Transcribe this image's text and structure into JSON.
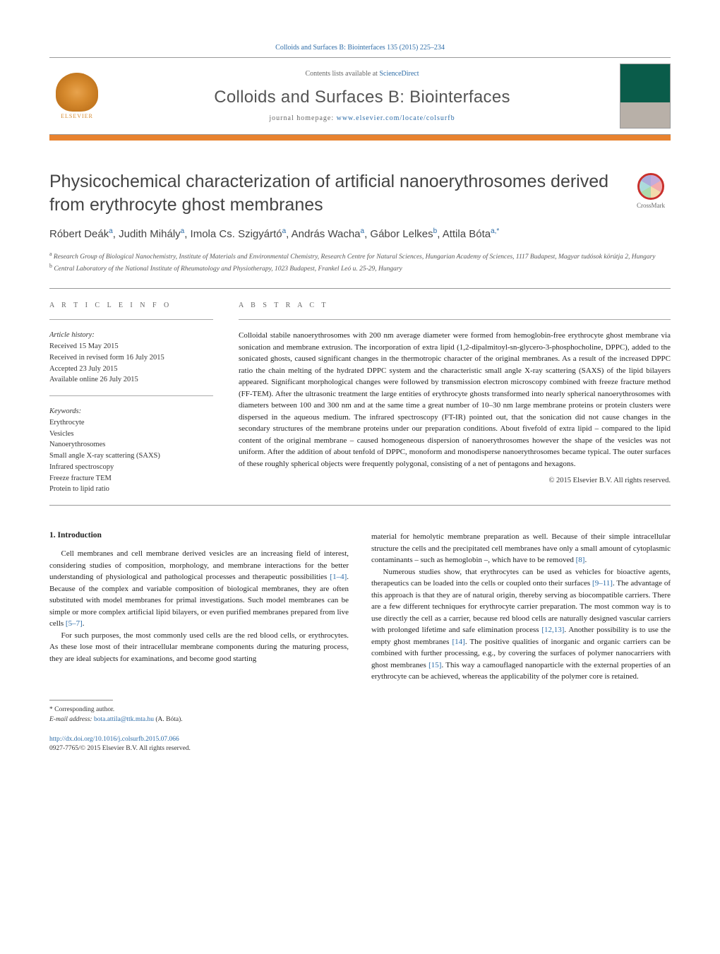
{
  "header": {
    "top_link": "Colloids and Surfaces B: Biointerfaces 135 (2015) 225–234",
    "contents_prefix": "Contents lists available at ",
    "contents_link": "ScienceDirect",
    "journal_name": "Colloids and Surfaces B: Biointerfaces",
    "homepage_prefix": "journal homepage: ",
    "homepage_link": "www.elsevier.com/locate/colsurfb",
    "elsevier_label": "ELSEVIER",
    "crossmark_label": "CrossMark"
  },
  "title": "Physicochemical characterization of artificial nanoerythrosomes derived from erythrocyte ghost membranes",
  "authors_html": "Róbert Deák<sup>a</sup>, Judith Mihály<sup>a</sup>, Imola Cs. Szigyártó<sup>a</sup>, András Wacha<sup>a</sup>, Gábor Lelkes<sup>b</sup>, Attila Bóta<sup>a,*</sup>",
  "affiliations": {
    "a": "Research Group of Biological Nanochemistry, Institute of Materials and Environmental Chemistry, Research Centre for Natural Sciences, Hungarian Academy of Sciences, 1117 Budapest, Magyar tudósok körútja 2, Hungary",
    "b": "Central Laboratory of the National Institute of Rheumatology and Physiotherapy, 1023 Budapest, Frankel Leó u. 25-29, Hungary"
  },
  "article_info": {
    "label": "A R T I C L E   I N F O",
    "history_hdr": "Article history:",
    "received": "Received 15 May 2015",
    "revised": "Received in revised form 16 July 2015",
    "accepted": "Accepted 23 July 2015",
    "online": "Available online 26 July 2015",
    "keywords_hdr": "Keywords:",
    "keywords": [
      "Erythrocyte",
      "Vesicles",
      "Nanoerythrosomes",
      "Small angle X-ray scattering (SAXS)",
      "Infrared spectroscopy",
      "Freeze fracture TEM",
      "Protein to lipid ratio"
    ]
  },
  "abstract": {
    "label": "A B S T R A C T",
    "text": "Colloidal stabile nanoerythrosomes with 200 nm average diameter were formed from hemoglobin-free erythrocyte ghost membrane via sonication and membrane extrusion. The incorporation of extra lipid (1,2-dipalmitoyl-sn-glycero-3-phosphocholine, DPPC), added to the sonicated ghosts, caused significant changes in the thermotropic character of the original membranes. As a result of the increased DPPC ratio the chain melting of the hydrated DPPC system and the characteristic small angle X-ray scattering (SAXS) of the lipid bilayers appeared. Significant morphological changes were followed by transmission electron microscopy combined with freeze fracture method (FF-TEM). After the ultrasonic treatment the large entities of erythrocyte ghosts transformed into nearly spherical nanoerythrosomes with diameters between 100 and 300 nm and at the same time a great number of 10–30 nm large membrane proteins or protein clusters were dispersed in the aqueous medium. The infrared spectroscopy (FT-IR) pointed out, that the sonication did not cause changes in the secondary structures of the membrane proteins under our preparation conditions. About fivefold of extra lipid – compared to the lipid content of the original membrane – caused homogeneous dispersion of nanoerythrosomes however the shape of the vesicles was not uniform. After the addition of about tenfold of DPPC, monoform and monodisperse nanoerythrosomes became typical. The outer surfaces of these roughly spherical objects were frequently polygonal, consisting of a net of pentagons and hexagons.",
    "copyright": "© 2015 Elsevier B.V. All rights reserved."
  },
  "body": {
    "intro_heading": "1.  Introduction",
    "p1_pre": "Cell membranes and cell membrane derived vesicles are an increasing field of interest, considering studies of composition, morphology, and membrane interactions for the better understanding of physiological and pathological processes and therapeutic possibilities ",
    "p1_cite": "[1–4]",
    "p1_mid": ". Because of the complex and variable composition of biological membranes, they are often substituted with model membranes for primal investigations. Such model membranes can be simple or more complex artificial lipid bilayers, or even purified membranes prepared from live cells ",
    "p1_cite2": "[5–7]",
    "p1_end": ".",
    "p2": "For such purposes, the most commonly used cells are the red blood cells, or erythrocytes. As these lose most of their intracellular membrane components during the maturing process, they are ideal subjects for examinations, and become good starting",
    "p3_pre": "material for hemolytic membrane preparation as well. Because of their simple intracellular structure the cells and the precipitated cell membranes have only a small amount of cytoplasmic contaminants – such as hemoglobin –, which have to be removed ",
    "p3_cite": "[8]",
    "p3_end": ".",
    "p4_pre": "Numerous studies show, that erythrocytes can be used as vehicles for bioactive agents, therapeutics can be loaded into the cells or coupled onto their surfaces ",
    "p4_cite1": "[9–11]",
    "p4_mid1": ". The advantage of this approach is that they are of natural origin, thereby serving as biocompatible carriers. There are a few different techniques for erythrocyte carrier preparation. The most common way is to use directly the cell as a carrier, because red blood cells are naturally designed vascular carriers with prolonged lifetime and safe elimination process ",
    "p4_cite2": "[12,13]",
    "p4_mid2": ". Another possibility is to use the empty ghost membranes ",
    "p4_cite3": "[14]",
    "p4_mid3": ". The positive qualities of inorganic and organic carriers can be combined with further processing, e.g., by covering the surfaces of polymer nanocarriers with ghost membranes ",
    "p4_cite4": "[15]",
    "p4_end": ". This way a camouflaged nanoparticle with the external properties of an erythrocyte can be achieved, whereas the applicability of the polymer core is retained."
  },
  "footnote": {
    "corr": "* Corresponding author.",
    "email_label": "E-mail address: ",
    "email": "bota.attila@ttk.mta.hu",
    "email_who": " (A. Bóta)."
  },
  "doi": {
    "url": "http://dx.doi.org/10.1016/j.colsurfb.2015.07.066",
    "issn": "0927-7765/© 2015 Elsevier B.V. All rights reserved."
  },
  "colors": {
    "link": "#2d6ca7",
    "orange": "#e8822e",
    "text": "#222222",
    "grey": "#666666"
  }
}
